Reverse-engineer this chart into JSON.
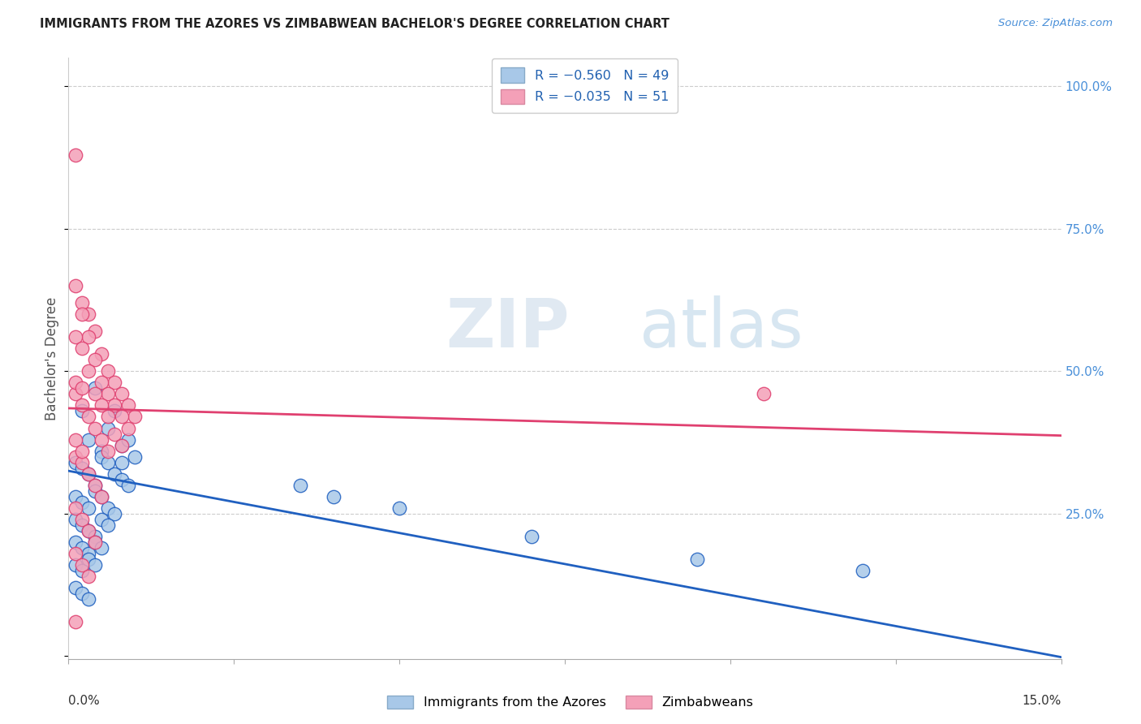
{
  "title": "IMMIGRANTS FROM THE AZORES VS ZIMBABWEAN BACHELOR'S DEGREE CORRELATION CHART",
  "source": "Source: ZipAtlas.com",
  "ylabel": "Bachelor's Degree",
  "xlim": [
    0.0,
    0.15
  ],
  "ylim": [
    -0.005,
    1.05
  ],
  "color_blue": "#a8c8e8",
  "color_pink": "#f4a0b8",
  "line_blue": "#2060c0",
  "line_pink": "#e04070",
  "watermark_zip": "ZIP",
  "watermark_atlas": "atlas",
  "blue_intercept": 0.325,
  "blue_slope": -2.18,
  "pink_intercept": 0.435,
  "pink_slope": -0.32,
  "blue_x": [
    0.002,
    0.003,
    0.004,
    0.005,
    0.006,
    0.007,
    0.008,
    0.009,
    0.01,
    0.001,
    0.002,
    0.003,
    0.004,
    0.005,
    0.006,
    0.007,
    0.008,
    0.009,
    0.001,
    0.002,
    0.003,
    0.004,
    0.005,
    0.006,
    0.007,
    0.008,
    0.001,
    0.002,
    0.003,
    0.004,
    0.005,
    0.006,
    0.001,
    0.002,
    0.003,
    0.004,
    0.005,
    0.001,
    0.002,
    0.003,
    0.004,
    0.001,
    0.002,
    0.003,
    0.035,
    0.04,
    0.05,
    0.07,
    0.095,
    0.12
  ],
  "blue_y": [
    0.43,
    0.38,
    0.47,
    0.36,
    0.4,
    0.43,
    0.37,
    0.38,
    0.35,
    0.34,
    0.33,
    0.32,
    0.3,
    0.35,
    0.34,
    0.32,
    0.31,
    0.3,
    0.28,
    0.27,
    0.26,
    0.29,
    0.28,
    0.26,
    0.25,
    0.34,
    0.24,
    0.23,
    0.22,
    0.21,
    0.24,
    0.23,
    0.2,
    0.19,
    0.18,
    0.2,
    0.19,
    0.16,
    0.15,
    0.17,
    0.16,
    0.12,
    0.11,
    0.1,
    0.3,
    0.28,
    0.26,
    0.21,
    0.17,
    0.15
  ],
  "pink_x": [
    0.001,
    0.002,
    0.003,
    0.004,
    0.005,
    0.006,
    0.007,
    0.008,
    0.009,
    0.01,
    0.001,
    0.002,
    0.003,
    0.004,
    0.005,
    0.006,
    0.007,
    0.008,
    0.009,
    0.001,
    0.002,
    0.003,
    0.004,
    0.005,
    0.006,
    0.007,
    0.008,
    0.001,
    0.002,
    0.003,
    0.004,
    0.005,
    0.006,
    0.001,
    0.002,
    0.003,
    0.004,
    0.005,
    0.001,
    0.002,
    0.003,
    0.004,
    0.001,
    0.002,
    0.003,
    0.001,
    0.002,
    0.001,
    0.002,
    0.001,
    0.105
  ],
  "pink_y": [
    0.88,
    0.62,
    0.6,
    0.57,
    0.53,
    0.5,
    0.48,
    0.46,
    0.44,
    0.42,
    0.65,
    0.6,
    0.56,
    0.52,
    0.48,
    0.46,
    0.44,
    0.42,
    0.4,
    0.56,
    0.54,
    0.5,
    0.46,
    0.44,
    0.42,
    0.39,
    0.37,
    0.46,
    0.44,
    0.42,
    0.4,
    0.38,
    0.36,
    0.35,
    0.34,
    0.32,
    0.3,
    0.28,
    0.26,
    0.24,
    0.22,
    0.2,
    0.18,
    0.16,
    0.14,
    0.48,
    0.47,
    0.38,
    0.36,
    0.06,
    0.46
  ]
}
